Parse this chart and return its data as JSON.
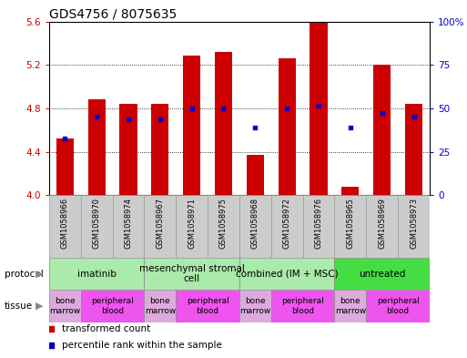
{
  "title": "GDS4756 / 8075635",
  "samples": [
    "GSM1058966",
    "GSM1058970",
    "GSM1058974",
    "GSM1058967",
    "GSM1058971",
    "GSM1058975",
    "GSM1058968",
    "GSM1058972",
    "GSM1058976",
    "GSM1058965",
    "GSM1058969",
    "GSM1058973"
  ],
  "bar_values": [
    4.52,
    4.88,
    4.84,
    4.84,
    5.29,
    5.32,
    4.37,
    5.26,
    5.59,
    4.08,
    5.2,
    4.84
  ],
  "percentile_values": [
    4.52,
    4.72,
    4.7,
    4.7,
    4.8,
    4.8,
    4.62,
    4.8,
    4.82,
    4.62,
    4.76,
    4.72
  ],
  "bar_base": 4.0,
  "ylim": [
    4.0,
    5.6
  ],
  "yticks": [
    4.0,
    4.4,
    4.8,
    5.2,
    5.6
  ],
  "y2ticks_pct": [
    0,
    25,
    50,
    75,
    100
  ],
  "y2labels": [
    "0",
    "25",
    "50",
    "75",
    "100%"
  ],
  "bar_color": "#cc0000",
  "percentile_color": "#0000cc",
  "protocols": [
    {
      "label": "imatinib",
      "start": 0,
      "end": 2,
      "color": "#aaeaaa"
    },
    {
      "label": "mesenchymal stromal\ncell",
      "start": 3,
      "end": 5,
      "color": "#aaeaaa"
    },
    {
      "label": "combined (IM + MSC)",
      "start": 6,
      "end": 8,
      "color": "#aaeaaa"
    },
    {
      "label": "untreated",
      "start": 9,
      "end": 11,
      "color": "#44dd44"
    }
  ],
  "tissues": [
    {
      "label": "bone\nmarrow",
      "start": 0,
      "end": 0,
      "color": "#ddaadd"
    },
    {
      "label": "peripheral\nblood",
      "start": 1,
      "end": 2,
      "color": "#ee55ee"
    },
    {
      "label": "bone\nmarrow",
      "start": 3,
      "end": 3,
      "color": "#ddaadd"
    },
    {
      "label": "peripheral\nblood",
      "start": 4,
      "end": 5,
      "color": "#ee55ee"
    },
    {
      "label": "bone\nmarrow",
      "start": 6,
      "end": 6,
      "color": "#ddaadd"
    },
    {
      "label": "peripheral\nblood",
      "start": 7,
      "end": 8,
      "color": "#ee55ee"
    },
    {
      "label": "bone\nmarrow",
      "start": 9,
      "end": 9,
      "color": "#ddaadd"
    },
    {
      "label": "peripheral\nblood",
      "start": 10,
      "end": 11,
      "color": "#ee55ee"
    }
  ],
  "bar_width": 0.55,
  "bar_color_left": "#cc0000",
  "bar_color_right": "#0000cc",
  "title_fontsize": 10,
  "tick_fontsize": 7.5,
  "sample_fontsize": 6.0,
  "annot_fontsize": 7.5,
  "legend_fontsize": 7.5
}
